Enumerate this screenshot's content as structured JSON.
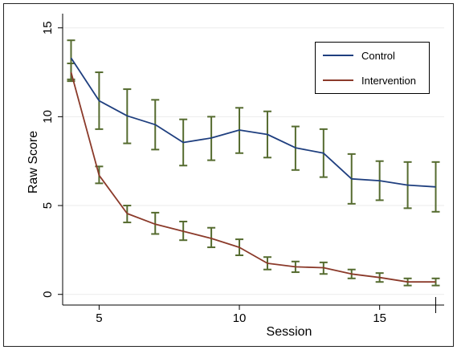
{
  "chart_data": {
    "type": "line",
    "title": "",
    "xlabel": "Session",
    "ylabel": "Raw Score",
    "xlim": [
      3.7,
      17.3
    ],
    "ylim": [
      -0.6,
      15.8
    ],
    "x_ticks": [
      5,
      10,
      15
    ],
    "y_ticks": [
      0,
      5,
      10,
      15
    ],
    "x_tick_labels": [
      "5",
      "10",
      "15"
    ],
    "y_tick_labels": [
      "0",
      "5",
      "10",
      "15"
    ],
    "grid": true,
    "legend_position": "top-right",
    "x": [
      4,
      5,
      6,
      7,
      8,
      9,
      10,
      11,
      12,
      13,
      14,
      15,
      16,
      17
    ],
    "series": [
      {
        "name": "Control",
        "color": "#1F3F7F",
        "values": [
          13.3,
          10.9,
          10.05,
          9.55,
          8.55,
          8.8,
          9.25,
          9.0,
          8.25,
          7.95,
          6.5,
          6.4,
          6.15,
          6.05
        ],
        "error_low": [
          12.1,
          9.3,
          8.5,
          8.15,
          7.25,
          7.55,
          7.95,
          7.7,
          7.0,
          6.6,
          5.1,
          5.3,
          4.85,
          4.65
        ],
        "error_high": [
          14.3,
          12.5,
          11.55,
          10.95,
          9.85,
          10.0,
          10.5,
          10.3,
          9.45,
          9.3,
          7.9,
          7.5,
          7.45,
          7.45
        ]
      },
      {
        "name": "Intervention",
        "color": "#8B3A2A",
        "values": [
          12.5,
          6.7,
          4.55,
          3.95,
          3.55,
          3.15,
          2.65,
          1.75,
          1.55,
          1.5,
          1.15,
          0.95,
          0.7,
          0.7
        ],
        "error_low": [
          12.0,
          6.25,
          4.05,
          3.4,
          3.05,
          2.65,
          2.2,
          1.4,
          1.25,
          1.15,
          0.9,
          0.7,
          0.5,
          0.5
        ],
        "error_high": [
          13.0,
          7.2,
          5.0,
          4.6,
          4.1,
          3.75,
          3.1,
          2.1,
          1.85,
          1.8,
          1.4,
          1.2,
          0.9,
          0.9
        ]
      }
    ],
    "error_bar_color": "#556B2F"
  }
}
